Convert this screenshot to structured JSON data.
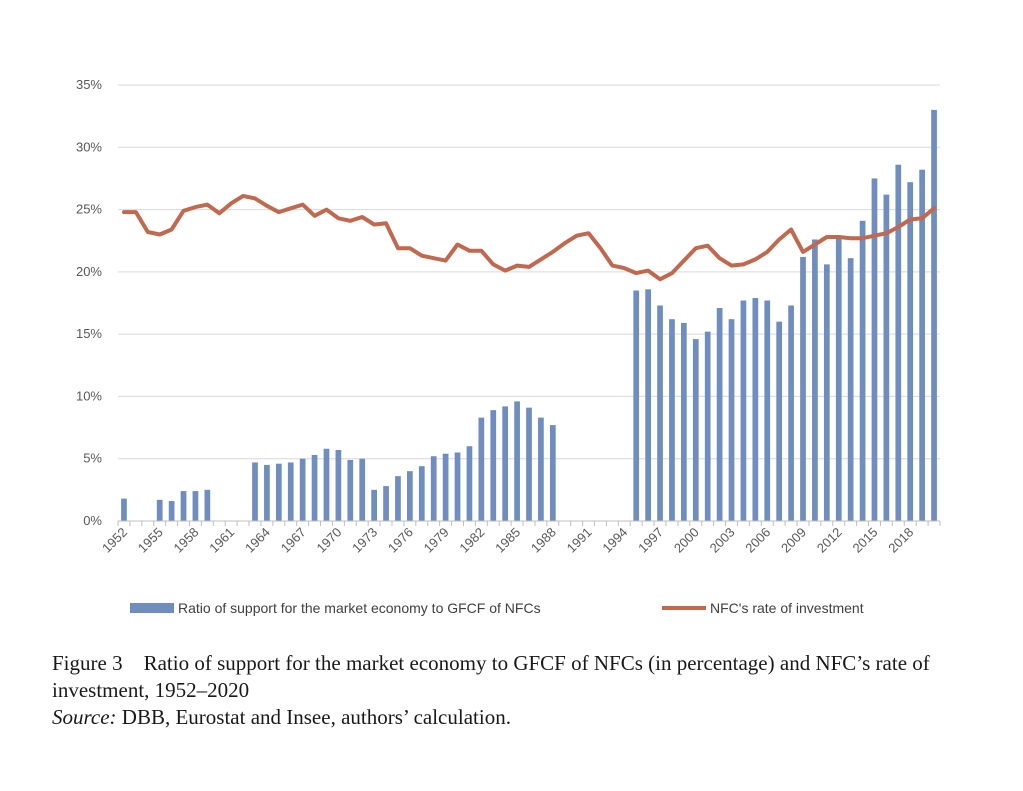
{
  "chart_data": {
    "type": "bar+line",
    "title": "",
    "xlabel": "",
    "ylabel": "",
    "ylim": [
      0,
      35
    ],
    "yticks": [
      "0%",
      "5%",
      "10%",
      "15%",
      "20%",
      "25%",
      "30%",
      "35%"
    ],
    "ytick_values": [
      0,
      5,
      10,
      15,
      20,
      25,
      30,
      35
    ],
    "x": [
      1952,
      1953,
      1954,
      1955,
      1956,
      1957,
      1958,
      1959,
      1960,
      1961,
      1962,
      1963,
      1964,
      1965,
      1966,
      1967,
      1968,
      1969,
      1970,
      1971,
      1972,
      1973,
      1974,
      1975,
      1976,
      1977,
      1978,
      1979,
      1980,
      1981,
      1982,
      1983,
      1984,
      1985,
      1986,
      1987,
      1988,
      1989,
      1990,
      1991,
      1992,
      1993,
      1994,
      1995,
      1996,
      1997,
      1998,
      1999,
      2000,
      2001,
      2002,
      2003,
      2004,
      2005,
      2006,
      2007,
      2008,
      2009,
      2010,
      2011,
      2012,
      2013,
      2014,
      2015,
      2016,
      2017,
      2018,
      2019,
      2020
    ],
    "xtick_labels": [
      "1952",
      "1955",
      "1958",
      "1961",
      "1964",
      "1967",
      "1970",
      "1973",
      "1976",
      "1979",
      "1982",
      "1985",
      "1988",
      "1991",
      "1994",
      "1997",
      "2000",
      "2003",
      "2006",
      "2009",
      "2012",
      "2015",
      "2018"
    ],
    "series": [
      {
        "name": "Ratio of support for the market economy to GFCF of NFCs",
        "kind": "bar",
        "color": "#6F8DBF",
        "values": [
          1.8,
          null,
          null,
          1.7,
          1.6,
          2.4,
          2.4,
          2.5,
          null,
          null,
          null,
          4.7,
          4.5,
          4.6,
          4.7,
          5.0,
          5.3,
          5.8,
          5.7,
          4.9,
          5.0,
          2.5,
          2.8,
          3.6,
          4.0,
          4.4,
          5.2,
          5.4,
          5.5,
          6.0,
          8.3,
          8.9,
          9.2,
          9.6,
          9.1,
          8.3,
          7.7,
          null,
          null,
          null,
          null,
          null,
          null,
          18.5,
          18.6,
          17.3,
          16.2,
          15.9,
          14.6,
          15.2,
          17.1,
          16.2,
          17.7,
          17.9,
          17.7,
          16.0,
          17.3,
          21.2,
          22.6,
          20.6,
          22.7,
          21.1,
          24.1,
          27.5,
          26.2,
          28.6,
          27.2,
          28.2,
          33.0
        ]
      },
      {
        "name": "NFC's rate of investment",
        "kind": "line",
        "color": "#C0694E",
        "values": [
          24.8,
          24.8,
          23.2,
          23.0,
          23.4,
          24.9,
          25.2,
          25.4,
          24.7,
          25.5,
          26.1,
          25.9,
          25.3,
          24.8,
          25.1,
          25.4,
          24.5,
          25.0,
          24.3,
          24.1,
          24.4,
          23.8,
          23.9,
          21.9,
          21.9,
          21.3,
          21.1,
          20.9,
          22.2,
          21.7,
          21.7,
          20.6,
          20.1,
          20.5,
          20.4,
          21.0,
          21.6,
          22.3,
          22.9,
          23.1,
          21.9,
          20.5,
          20.3,
          19.9,
          20.1,
          19.4,
          19.9,
          20.9,
          21.9,
          22.1,
          21.1,
          20.5,
          20.6,
          21.0,
          21.6,
          22.6,
          23.4,
          21.6,
          22.2,
          22.8,
          22.8,
          22.7,
          22.7,
          22.9,
          23.1,
          23.6,
          24.2,
          24.3,
          25.1
        ]
      }
    ],
    "legend_position": "bottom"
  },
  "legend": {
    "bar_label": "Ratio of support for the market economy to GFCF of NFCs",
    "line_label": "NFC's rate of investment"
  },
  "caption": {
    "figure": "Figure 3",
    "title": "Ratio of support for the market economy to GFCF of NFCs (in percentage) and NFC’s rate of investment, 1952–2020",
    "source_label": "Source:",
    "source_text": "DBB, Eurostat and Insee, authors’ calculation."
  }
}
